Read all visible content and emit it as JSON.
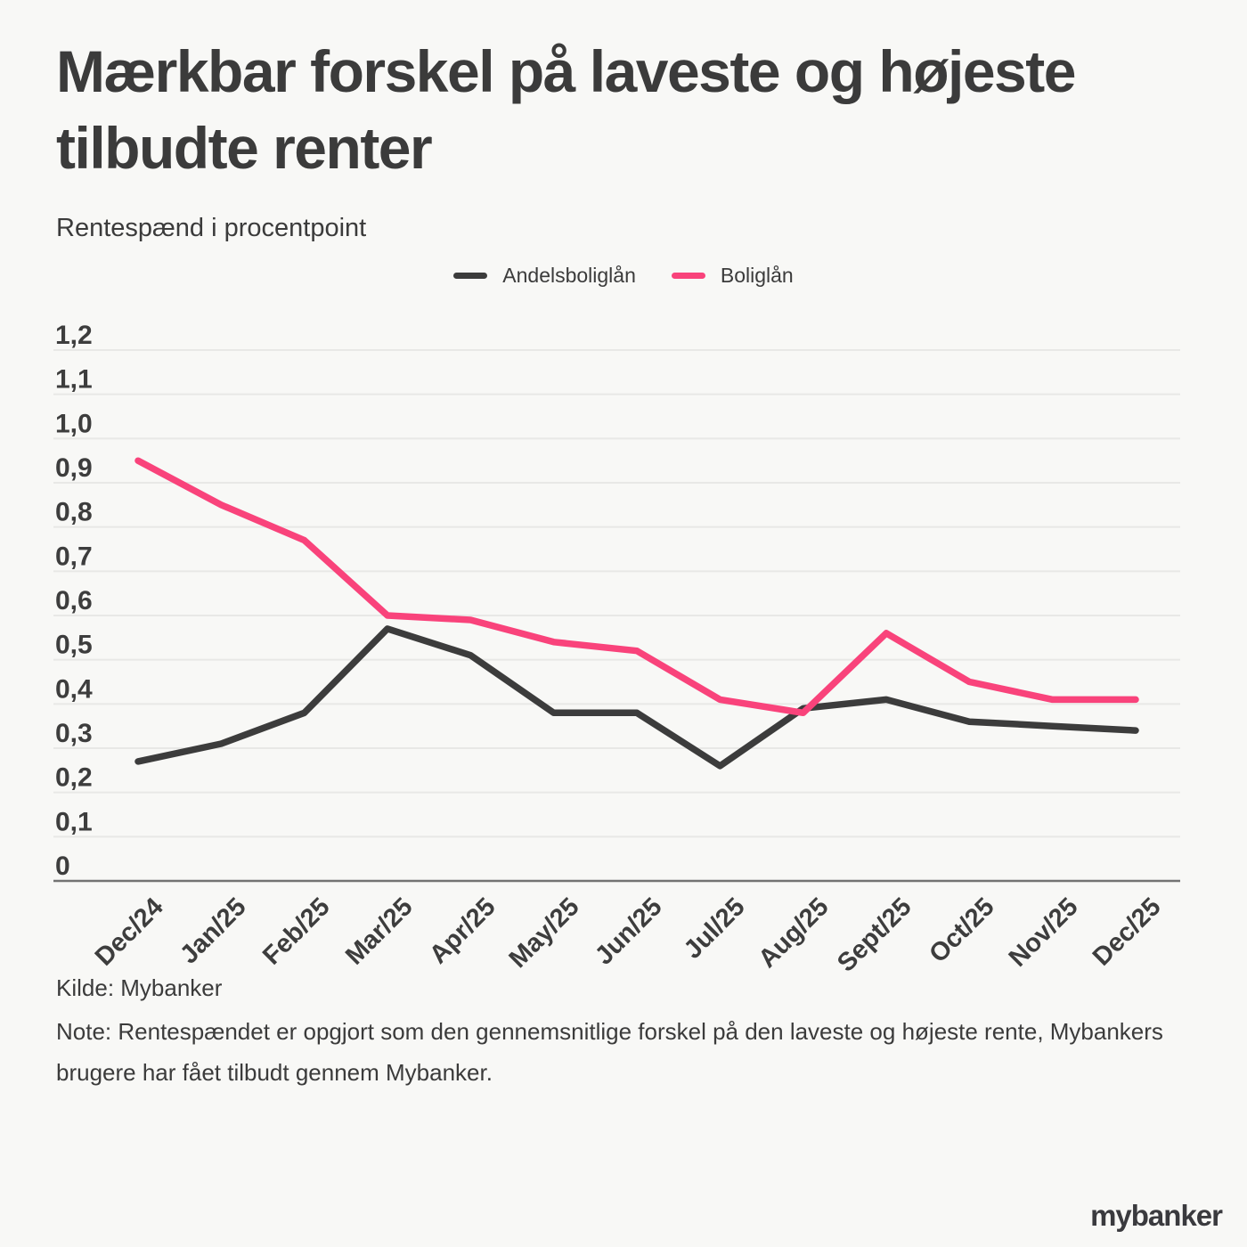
{
  "page": {
    "title": "Mærkbar forskel på laveste og højeste tilbudte renter",
    "subtitle": "Rentespænd i procentpoint",
    "source": "Kilde: Mybanker",
    "note": "Note: Rentespændet er opgjort som den gennemsnitlige forskel på den laveste og højeste rente, Mybankers brugere har fået tilbudt gennem Mybanker.",
    "logo": "mybanker"
  },
  "colors": {
    "background": "#F8F8F6",
    "grid": "#E8E8E6",
    "axis": "#737373",
    "text": "#3B3B3B"
  },
  "chart_data": {
    "type": "line",
    "title": "Mærkbar forskel på laveste og højeste tilbudte renter",
    "ylabel": "Rentespænd i procentpoint",
    "categories": [
      "Dec/24",
      "Jan/25",
      "Feb/25",
      "Mar/25",
      "Apr/25",
      "May/25",
      "Jun/25",
      "Jul/25",
      "Aug/25",
      "Sept/25",
      "Oct/25",
      "Nov/25",
      "Dec/25"
    ],
    "series": [
      {
        "name": "Andelsboliglån",
        "color": "#3C3C3C",
        "values": [
          0.27,
          0.31,
          0.38,
          0.57,
          0.51,
          0.38,
          0.38,
          0.26,
          0.39,
          0.41,
          0.36,
          0.35,
          0.34
        ]
      },
      {
        "name": "Boliglån",
        "color": "#F9437B",
        "values": [
          0.95,
          0.85,
          0.77,
          0.6,
          0.59,
          0.54,
          0.52,
          0.41,
          0.38,
          0.56,
          0.45,
          0.41,
          0.41
        ]
      }
    ],
    "ylim": [
      0,
      1.2
    ],
    "ytick_step": 0.1,
    "ytick_labels": [
      "0",
      "0,1",
      "0,2",
      "0,3",
      "0,4",
      "0,5",
      "0,6",
      "0,7",
      "0,8",
      "0,9",
      "1,0",
      "1,1",
      "1,2"
    ],
    "grid": true,
    "legend_position": "top-center"
  }
}
